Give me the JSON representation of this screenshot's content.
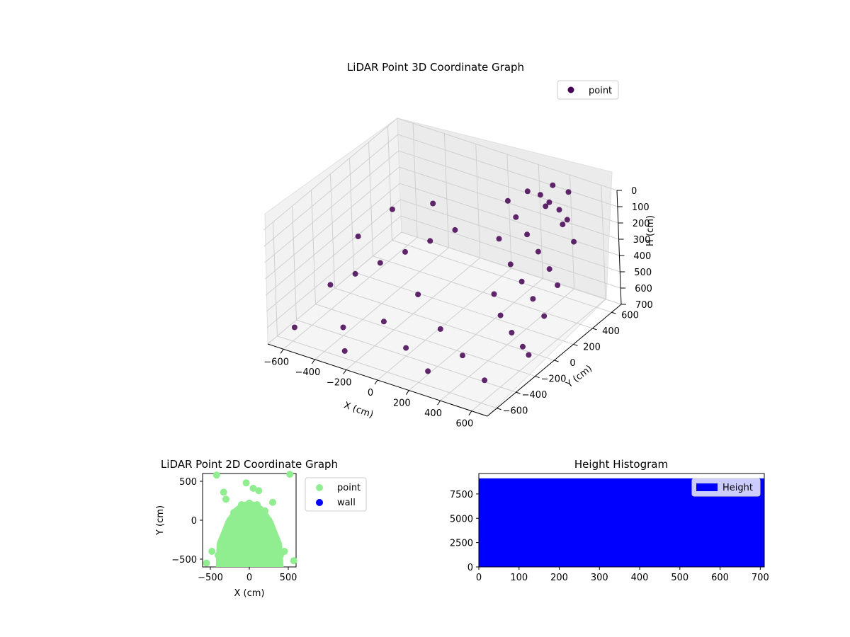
{
  "chart_data": [
    {
      "type": "scatter",
      "projection": "3d",
      "title": "LiDAR Point 3D Coordinate Graph",
      "xlabel": "X (cm)",
      "ylabel": "Y (cm)",
      "zlabel": "H (cm)",
      "xlim": [
        -700,
        700
      ],
      "ylim": [
        -700,
        700
      ],
      "zlim": [
        0,
        700
      ],
      "z_inverted": true,
      "x_ticks": [
        -600,
        -400,
        -200,
        0,
        200,
        400,
        600
      ],
      "y_ticks": [
        -600,
        -400,
        -200,
        0,
        200,
        400,
        600
      ],
      "z_ticks": [
        0,
        100,
        200,
        300,
        400,
        500,
        600,
        700
      ],
      "grid": true,
      "legend": "top-right",
      "series": [
        {
          "name": "point",
          "color": "#440154",
          "description_points": "dense block of points around X 150..600, Y 0..600, H 0..700 plus sparse scattered rows elsewhere",
          "points": [
            [
              250,
              500,
              50
            ],
            [
              300,
              550,
              80
            ],
            [
              350,
              520,
              120
            ],
            [
              400,
              480,
              60
            ],
            [
              450,
              500,
              100
            ],
            [
              500,
              450,
              150
            ],
            [
              550,
              420,
              90
            ],
            [
              200,
              450,
              200
            ],
            [
              300,
              400,
              250
            ],
            [
              400,
              350,
              300
            ],
            [
              500,
              300,
              350
            ],
            [
              250,
              300,
              400
            ],
            [
              350,
              250,
              450
            ],
            [
              450,
              200,
              500
            ],
            [
              550,
              150,
              550
            ],
            [
              300,
              100,
              600
            ],
            [
              400,
              50,
              650
            ],
            [
              500,
              0,
              680
            ],
            [
              200,
              200,
              550
            ],
            [
              150,
              350,
              300
            ],
            [
              600,
              400,
              200
            ],
            [
              580,
              250,
              400
            ],
            [
              120,
              500,
              150
            ],
            [
              350,
              600,
              30
            ],
            [
              450,
              600,
              40
            ],
            [
              -100,
              300,
              300
            ],
            [
              -200,
              200,
              350
            ],
            [
              -300,
              100,
              400
            ],
            [
              -400,
              0,
              450
            ],
            [
              -500,
              -100,
              500
            ],
            [
              -600,
              -200,
              550
            ],
            [
              -300,
              400,
              250
            ],
            [
              -500,
              300,
              300
            ],
            [
              -200,
              -300,
              600
            ],
            [
              0,
              -400,
              650
            ],
            [
              200,
              -500,
              680
            ],
            [
              -400,
              -400,
              650
            ],
            [
              -600,
              100,
              400
            ],
            [
              -100,
              -100,
              500
            ],
            [
              100,
              -200,
              600
            ],
            [
              300,
              -300,
              650
            ],
            [
              500,
              -400,
              690
            ],
            [
              600,
              -100,
              650
            ],
            [
              -650,
              -500,
              680
            ],
            [
              -300,
              -550,
              690
            ]
          ]
        }
      ]
    },
    {
      "type": "scatter",
      "title": "LiDAR Point 2D Coordinate Graph",
      "xlabel": "X (cm)",
      "ylabel": "Y (cm)",
      "xlim": [
        -600,
        600
      ],
      "ylim": [
        -600,
        600
      ],
      "x_ticks": [
        -500,
        0,
        500
      ],
      "y_ticks": [
        -500,
        0,
        500
      ],
      "legend": "outside-right",
      "series": [
        {
          "name": "point",
          "color": "#90ee90",
          "points": [
            [
              -420,
              580
            ],
            [
              520,
              590
            ],
            [
              -330,
              360
            ],
            [
              -40,
              480
            ],
            [
              -300,
              270
            ],
            [
              300,
              230
            ],
            [
              50,
              410
            ],
            [
              120,
              380
            ],
            [
              -550,
              -550
            ],
            [
              570,
              -520
            ],
            [
              -480,
              -400
            ],
            [
              450,
              -400
            ],
            [
              -100,
              200
            ],
            [
              0,
              220
            ],
            [
              100,
              200
            ],
            [
              -200,
              100
            ],
            [
              200,
              120
            ],
            [
              -250,
              0
            ],
            [
              250,
              0
            ],
            [
              -300,
              -150
            ],
            [
              300,
              -150
            ],
            [
              -350,
              -300
            ],
            [
              350,
              -300
            ],
            [
              -400,
              -450
            ],
            [
              400,
              -450
            ],
            [
              -200,
              -500
            ],
            [
              0,
              -520
            ],
            [
              200,
              -500
            ],
            [
              -100,
              -300
            ],
            [
              100,
              -300
            ],
            [
              0,
              0
            ],
            [
              -150,
              -100
            ],
            [
              150,
              -100
            ]
          ]
        },
        {
          "name": "wall",
          "color": "#0000ff",
          "points": []
        }
      ]
    },
    {
      "type": "bar",
      "subtype": "histogram",
      "title": "Height Histogram",
      "xlim": [
        0,
        710
      ],
      "ylim": [
        0,
        9600
      ],
      "x_ticks": [
        0,
        100,
        200,
        300,
        400,
        500,
        600,
        700
      ],
      "y_ticks": [
        0,
        2500,
        5000,
        7500
      ],
      "legend": "top-right",
      "series": [
        {
          "name": "Height",
          "color": "#0000ff",
          "bin_range": [
            0,
            710
          ],
          "value": 9100
        }
      ]
    }
  ]
}
